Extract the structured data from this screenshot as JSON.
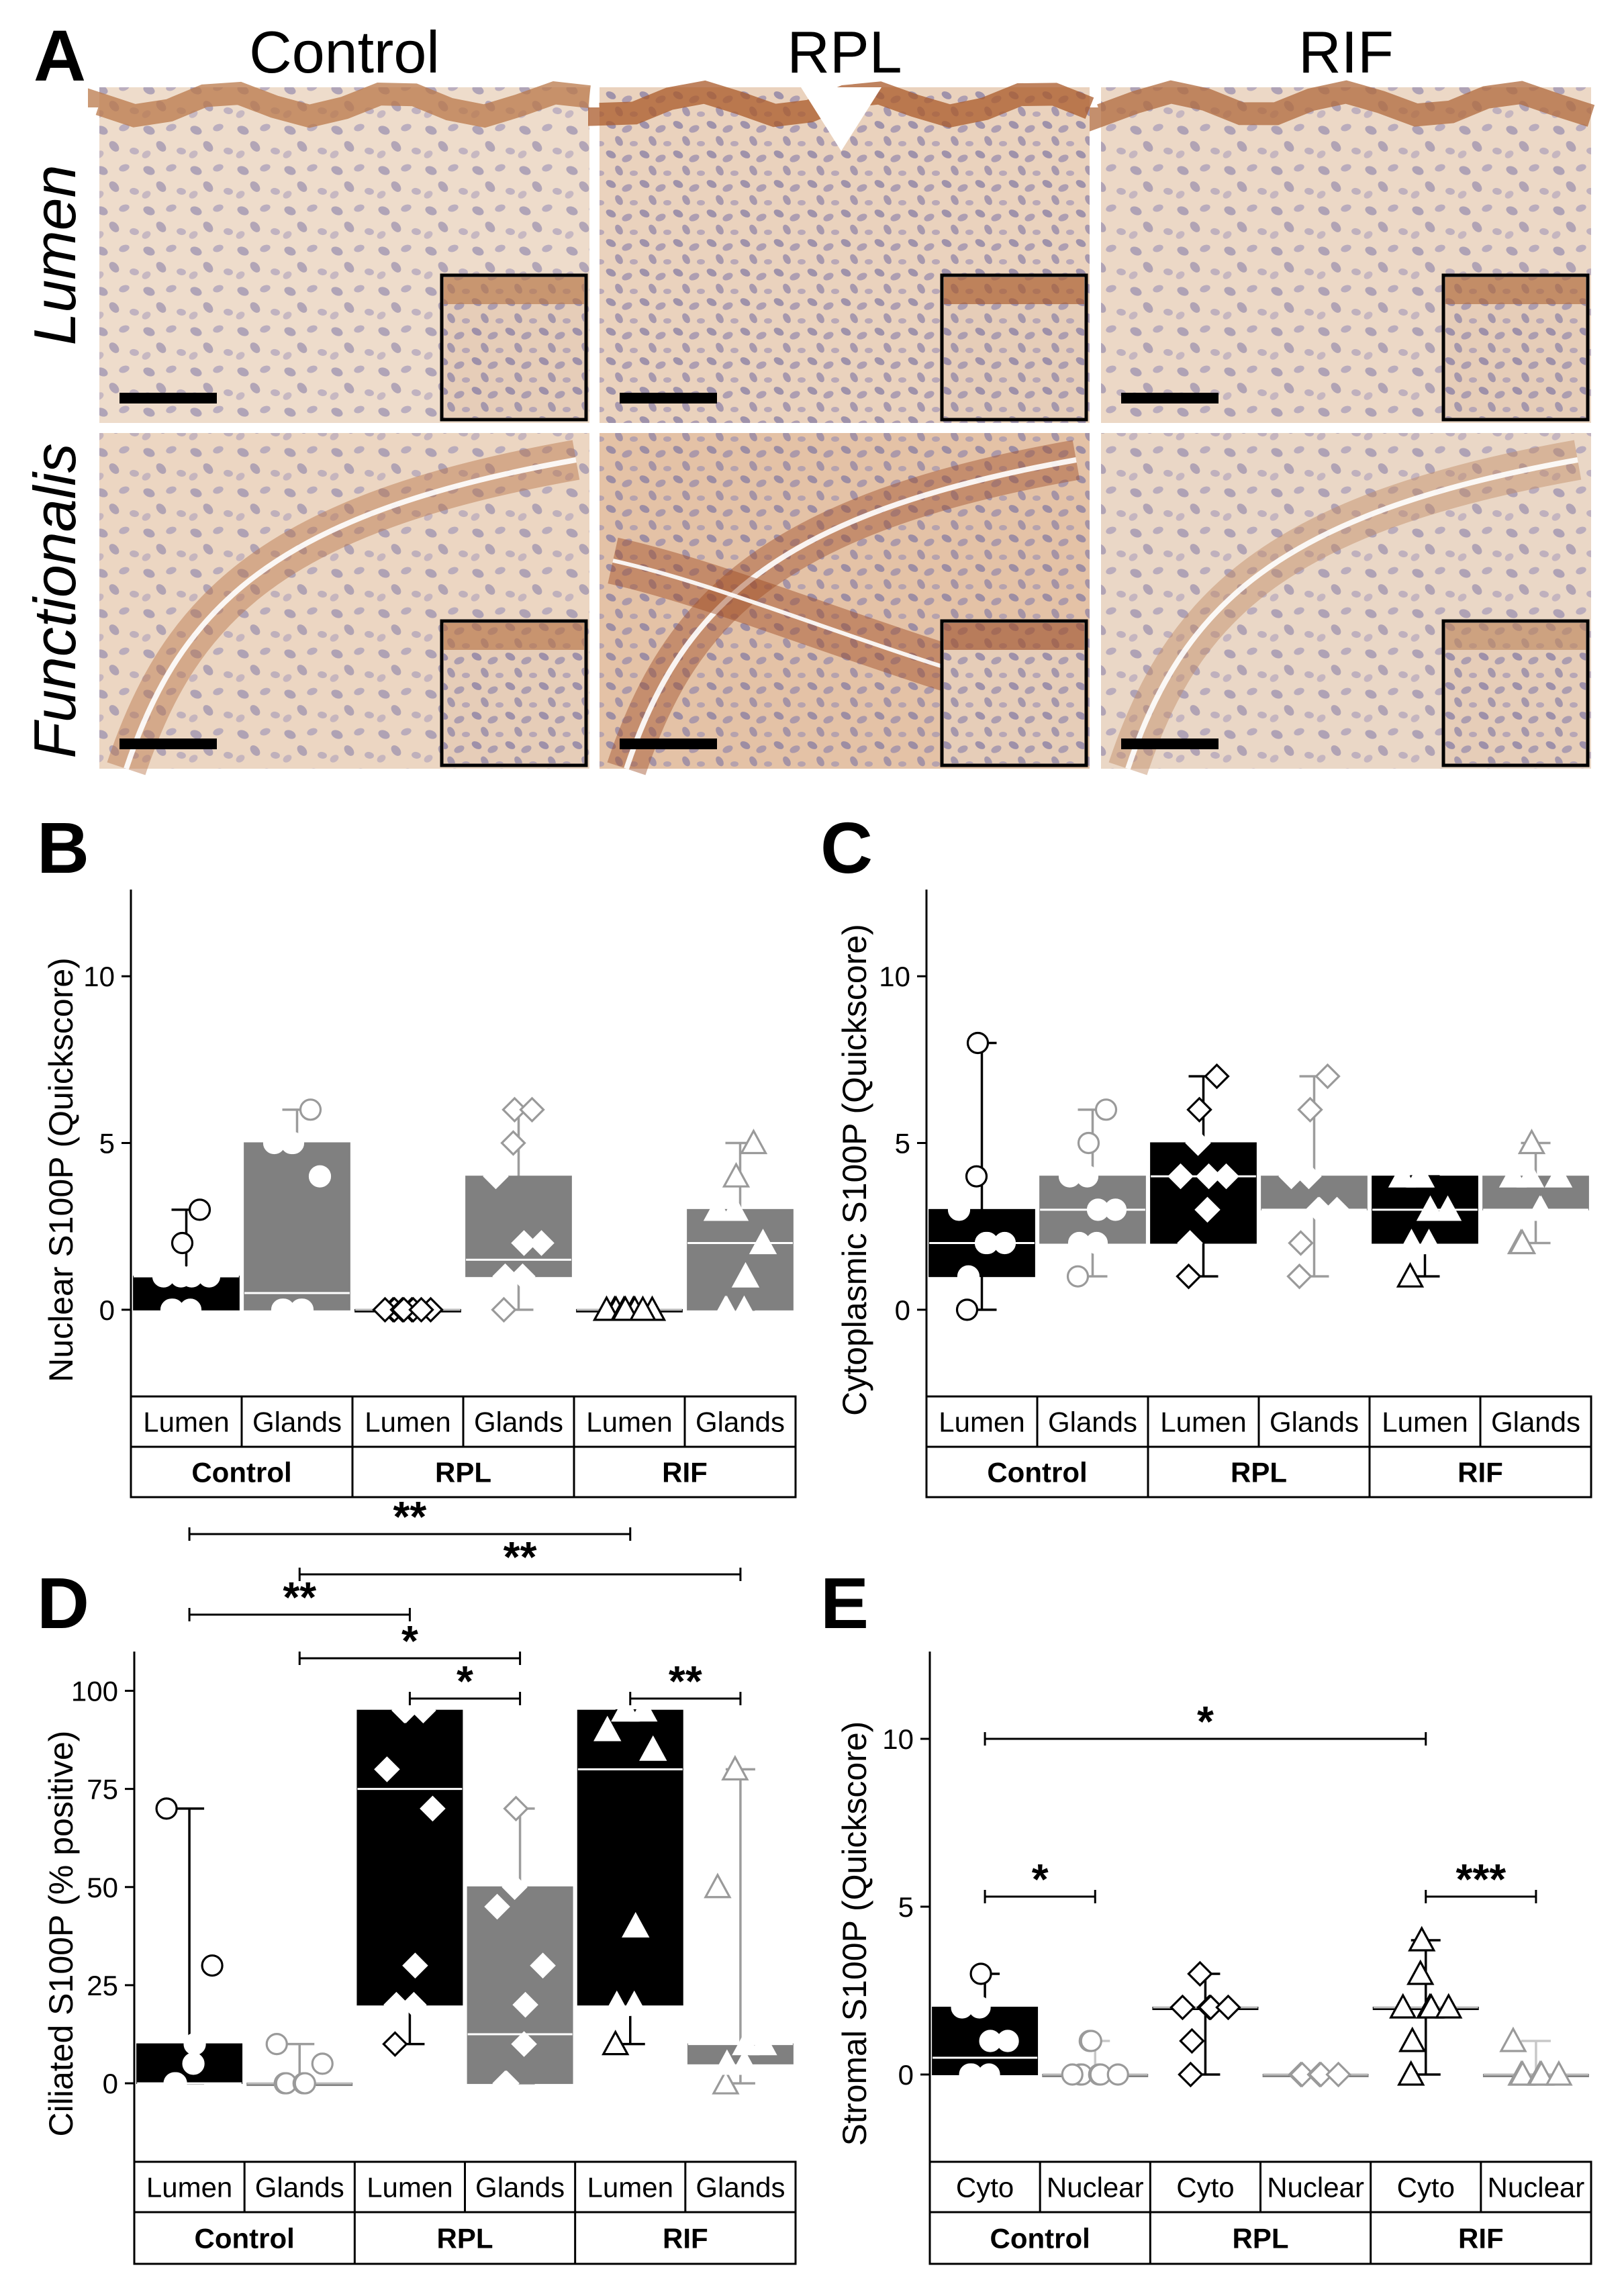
{
  "panel_a": {
    "letter": "A",
    "columns": [
      "Control",
      "RPL",
      "RIF"
    ],
    "rows": [
      "Lumen",
      "Functionalis"
    ]
  },
  "chart_data": [
    {
      "panel": "B",
      "type": "box",
      "ylabel": "Nuclear S100P (Quickscore)",
      "ylim": [
        -2.6,
        12.6
      ],
      "yticks": [
        0,
        5,
        10
      ],
      "sub_labels": [
        "Lumen",
        "Glands",
        "Lumen",
        "Glands",
        "Lumen",
        "Glands"
      ],
      "group_labels": [
        "Control",
        "RPL",
        "RIF"
      ],
      "boxes": [
        {
          "label": "Lumen",
          "group": "Control",
          "q1": 0,
          "median": 1,
          "q3": 1,
          "whisker_low": 0,
          "whisker_high": 3,
          "points": [
            0,
            0,
            0,
            1,
            1,
            1,
            1,
            2,
            3
          ]
        },
        {
          "label": "Glands",
          "group": "Control",
          "q1": 0,
          "median": 0.5,
          "q3": 5,
          "whisker_low": 0,
          "whisker_high": 6,
          "points": [
            0,
            0,
            0,
            0,
            4,
            5,
            5,
            5,
            6
          ]
        },
        {
          "label": "Lumen",
          "group": "RPL",
          "q1": 0,
          "median": 0,
          "q3": 0,
          "whisker_low": 0,
          "whisker_high": 0,
          "points": [
            0,
            0,
            0,
            0,
            0,
            0,
            0,
            0,
            0
          ]
        },
        {
          "label": "Glands",
          "group": "RPL",
          "q1": 1,
          "median": 1.5,
          "q3": 4,
          "whisker_low": 0,
          "whisker_high": 6,
          "points": [
            0,
            1,
            1,
            2,
            2,
            4,
            5,
            6,
            6
          ]
        },
        {
          "label": "Lumen",
          "group": "RIF",
          "q1": 0,
          "median": 0,
          "q3": 0,
          "whisker_low": 0,
          "whisker_high": 0,
          "points": [
            0,
            0,
            0,
            0,
            0,
            0,
            0,
            0,
            0
          ]
        },
        {
          "label": "Glands",
          "group": "RIF",
          "q1": 0,
          "median": 2,
          "q3": 3,
          "whisker_low": 0,
          "whisker_high": 5,
          "points": [
            0,
            0,
            0,
            1,
            2,
            3,
            3,
            4,
            5
          ]
        }
      ],
      "significance": []
    },
    {
      "panel": "C",
      "type": "box",
      "ylabel": "Cytoplasmic S100P (Quickscore)",
      "ylim": [
        -2.6,
        12.6
      ],
      "yticks": [
        0,
        5,
        10
      ],
      "sub_labels": [
        "Lumen",
        "Glands",
        "Lumen",
        "Glands",
        "Lumen",
        "Glands"
      ],
      "group_labels": [
        "Control",
        "RPL",
        "RIF"
      ],
      "boxes": [
        {
          "label": "Lumen",
          "group": "Control",
          "q1": 1,
          "median": 2,
          "q3": 3,
          "whisker_low": 0,
          "whisker_high": 8,
          "points": [
            0,
            1,
            2,
            2,
            2,
            3,
            4,
            8
          ]
        },
        {
          "label": "Glands",
          "group": "Control",
          "q1": 2,
          "median": 3,
          "q3": 4,
          "whisker_low": 1,
          "whisker_high": 6,
          "points": [
            1,
            2,
            2,
            3,
            3,
            4,
            4,
            5,
            6
          ]
        },
        {
          "label": "Lumen",
          "group": "RPL",
          "q1": 2,
          "median": 4,
          "q3": 5,
          "whisker_low": 1,
          "whisker_high": 7,
          "points": [
            1,
            2,
            3,
            4,
            4,
            4,
            5,
            6,
            7
          ]
        },
        {
          "label": "Glands",
          "group": "RPL",
          "q1": 3,
          "median": 3,
          "q3": 4,
          "whisker_low": 1,
          "whisker_high": 7,
          "points": [
            1,
            2,
            3,
            3,
            3,
            4,
            4,
            6,
            7
          ]
        },
        {
          "label": "Lumen",
          "group": "RIF",
          "q1": 2,
          "median": 3,
          "q3": 4,
          "whisker_low": 1,
          "whisker_high": 4,
          "points": [
            1,
            2,
            2,
            3,
            3,
            4,
            4,
            4
          ]
        },
        {
          "label": "Glands",
          "group": "RIF",
          "q1": 3,
          "median": 3,
          "q3": 4,
          "whisker_low": 2,
          "whisker_high": 5,
          "points": [
            2,
            2,
            3,
            3,
            4,
            4,
            4,
            5
          ]
        }
      ],
      "significance": []
    },
    {
      "panel": "D",
      "type": "box",
      "ylabel": "Ciliated S100P (% positive)",
      "ylim": [
        -20,
        110
      ],
      "yticks": [
        0,
        25,
        50,
        75,
        100
      ],
      "sub_labels": [
        "Lumen",
        "Glands",
        "Lumen",
        "Glands",
        "Lumen",
        "Glands"
      ],
      "group_labels": [
        "Control",
        "RPL",
        "RIF"
      ],
      "boxes": [
        {
          "label": "Lumen",
          "group": "Control",
          "q1": 0,
          "median": 0,
          "q3": 10,
          "whisker_low": 0,
          "whisker_high": 70,
          "points": [
            0,
            0,
            5,
            10,
            30,
            70
          ]
        },
        {
          "label": "Glands",
          "group": "Control",
          "q1": 0,
          "median": 0,
          "q3": 0,
          "whisker_low": 0,
          "whisker_high": 10,
          "points": [
            0,
            0,
            0,
            0,
            5,
            10
          ]
        },
        {
          "label": "Lumen",
          "group": "RPL",
          "q1": 20,
          "median": 75,
          "q3": 95,
          "whisker_low": 10,
          "whisker_high": 95,
          "points": [
            10,
            20,
            20,
            30,
            70,
            80,
            95,
            95,
            95
          ]
        },
        {
          "label": "Glands",
          "group": "RPL",
          "q1": 0,
          "median": 12.5,
          "q3": 50,
          "whisker_low": 0,
          "whisker_high": 70,
          "points": [
            0,
            0,
            10,
            20,
            30,
            45,
            50,
            70
          ]
        },
        {
          "label": "Lumen",
          "group": "RIF",
          "q1": 20,
          "median": 80,
          "q3": 95,
          "whisker_low": 10,
          "whisker_high": 95,
          "points": [
            10,
            20,
            20,
            40,
            85,
            90,
            95,
            95,
            95
          ]
        },
        {
          "label": "Glands",
          "group": "RIF",
          "q1": 5,
          "median": 10,
          "q3": 10,
          "whisker_low": 0,
          "whisker_high": 80,
          "points": [
            0,
            5,
            5,
            10,
            10,
            50,
            80
          ]
        }
      ],
      "significance": [
        {
          "from": 0,
          "to": 4,
          "label": "**"
        },
        {
          "from": 1,
          "to": 5,
          "label": "**"
        },
        {
          "from": 0,
          "to": 2,
          "label": "**"
        },
        {
          "from": 1,
          "to": 3,
          "label": "*"
        },
        {
          "from": 2,
          "to": 3,
          "label": "*"
        },
        {
          "from": 4,
          "to": 5,
          "label": "**"
        }
      ]
    },
    {
      "panel": "E",
      "type": "box",
      "ylabel": "Stromal S100P (Quickscore)",
      "ylim": [
        -2.6,
        12.6
      ],
      "yticks": [
        0,
        5,
        10
      ],
      "sub_labels": [
        "Cyto",
        "Nuclear",
        "Cyto",
        "Nuclear",
        "Cyto",
        "Nuclear"
      ],
      "group_labels": [
        "Control",
        "RPL",
        "RIF"
      ],
      "boxes": [
        {
          "label": "Cyto",
          "group": "Control",
          "q1": 0,
          "median": 0.5,
          "q3": 2,
          "whisker_low": 0,
          "whisker_high": 3,
          "points": [
            0,
            0,
            0,
            1,
            1,
            2,
            2,
            3
          ]
        },
        {
          "label": "Nuclear",
          "group": "Control",
          "q1": 0,
          "median": 0,
          "q3": 0,
          "whisker_low": 0,
          "whisker_high": 1,
          "points": [
            0,
            0,
            0,
            0,
            0,
            0,
            1,
            1
          ]
        },
        {
          "label": "Cyto",
          "group": "RPL",
          "q1": 2,
          "median": 2,
          "q3": 2,
          "whisker_low": 0,
          "whisker_high": 3,
          "points": [
            0,
            1,
            2,
            2,
            2,
            2,
            3
          ]
        },
        {
          "label": "Nuclear",
          "group": "RPL",
          "q1": 0,
          "median": 0,
          "q3": 0,
          "whisker_low": 0,
          "whisker_high": 0,
          "points": [
            0,
            0,
            0,
            0,
            0
          ]
        },
        {
          "label": "Cyto",
          "group": "RIF",
          "q1": 2,
          "median": 2,
          "q3": 2,
          "whisker_low": 0,
          "whisker_high": 4,
          "points": [
            0,
            1,
            2,
            2,
            2,
            2,
            3,
            4
          ]
        },
        {
          "label": "Nuclear",
          "group": "RIF",
          "q1": 0,
          "median": 0,
          "q3": 0,
          "whisker_low": 0,
          "whisker_high": 1,
          "points": [
            0,
            0,
            0,
            0,
            0,
            1
          ]
        }
      ],
      "significance": [
        {
          "from": 0,
          "to": 4,
          "label": "*"
        },
        {
          "from": 0,
          "to": 1,
          "label": "*"
        },
        {
          "from": 4,
          "to": 5,
          "label": "***"
        }
      ]
    }
  ]
}
